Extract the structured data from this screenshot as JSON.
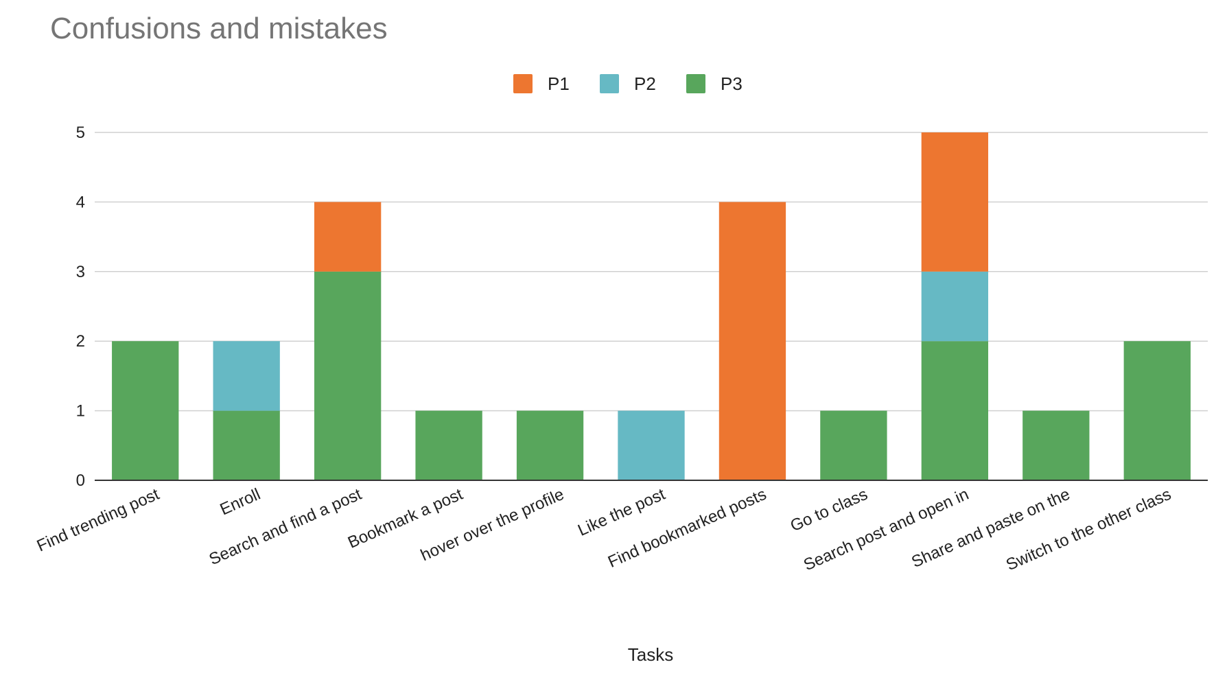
{
  "chart_data": {
    "type": "bar",
    "stacked": true,
    "title": "Confusions and mistakes",
    "xlabel": "Tasks",
    "ylabel": "",
    "ylim": [
      0,
      5
    ],
    "yticks": [
      0,
      1,
      2,
      3,
      4,
      5
    ],
    "grid": true,
    "legend_position": "top",
    "categories": [
      "Find trending post",
      "Enroll",
      "Search and find a post",
      "Bookmark a post",
      "hover over the profile",
      "Like the post",
      "Find bookmarked posts",
      "Go to class",
      "Search post and open in",
      "Share and paste on the",
      "Switch to the other class"
    ],
    "stack_order": [
      "P3",
      "P2",
      "P1"
    ],
    "series": [
      {
        "name": "P1",
        "color": "#ed7630",
        "values": [
          0,
          0,
          1,
          0,
          0,
          0,
          4,
          0,
          2,
          0,
          0
        ]
      },
      {
        "name": "P2",
        "color": "#66b9c4",
        "values": [
          0,
          1,
          0,
          0,
          0,
          1,
          0,
          0,
          1,
          0,
          0
        ]
      },
      {
        "name": "P3",
        "color": "#58a65c",
        "values": [
          2,
          1,
          3,
          1,
          1,
          0,
          0,
          1,
          2,
          1,
          2
        ]
      }
    ]
  }
}
